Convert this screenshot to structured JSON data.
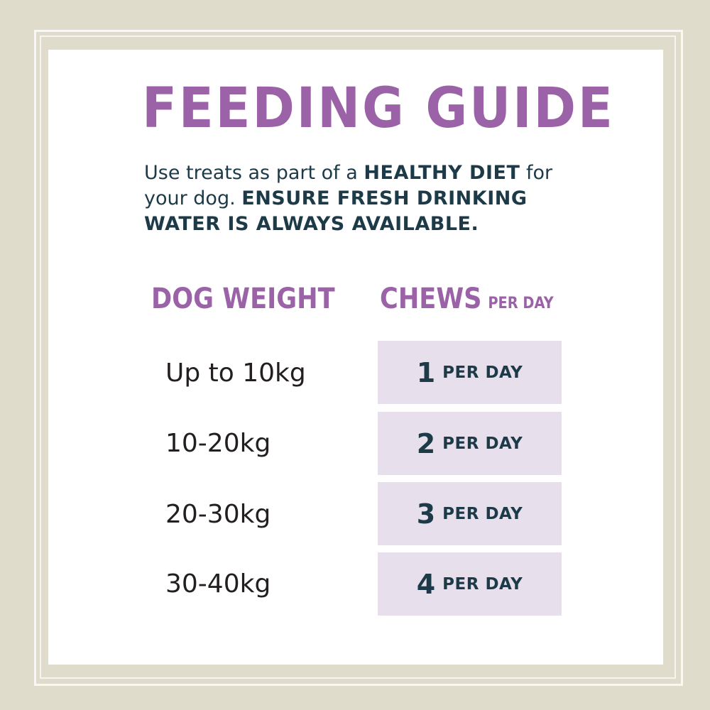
{
  "title": "FEEDING GUIDE",
  "intro": {
    "t1": "Use treats as part of a ",
    "b1": "HEALTHY DIET",
    "t2": " for your dog. ",
    "b2": "ENSURE FRESH DRINKING WATER IS ALWAYS AVAILABLE."
  },
  "headers": {
    "weight": "DOG WEIGHT",
    "chews": "CHEWS",
    "chews_sub": "PER DAY"
  },
  "rows": [
    {
      "weight": "Up to 10kg",
      "count": "1",
      "unit": "PER DAY"
    },
    {
      "weight": "10-20kg",
      "count": "2",
      "unit": "PER DAY"
    },
    {
      "weight": "20-30kg",
      "count": "3",
      "unit": "PER DAY"
    },
    {
      "weight": "30-40kg",
      "count": "4",
      "unit": "PER DAY"
    }
  ],
  "colors": {
    "background": "#dfdccb",
    "accent": "#9b62a8",
    "text": "#1c3a47",
    "cell": "#e8dfec"
  }
}
